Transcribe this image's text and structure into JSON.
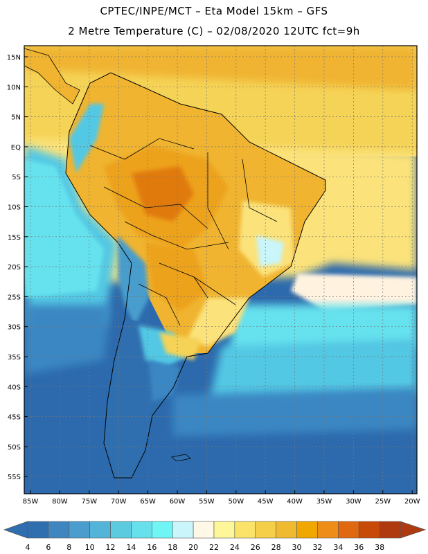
{
  "title_line1": "CPTEC/INPE/MCT –  Eta Model 15km – GFS",
  "title_line2": "2 Metre Temperature (C) – 02/08/2020 12UTC fct=9h",
  "lat_labels": [
    "15N",
    "10N",
    "5N",
    "EQ",
    "5S",
    "10S",
    "15S",
    "20S",
    "25S",
    "30S",
    "35S",
    "40S",
    "45S",
    "50S",
    "55S"
  ],
  "lon_labels": [
    "85W",
    "80W",
    "75W",
    "70W",
    "65W",
    "60W",
    "55W",
    "50W",
    "45W",
    "40W",
    "35W",
    "30W",
    "25W",
    "20W"
  ],
  "colorbar": {
    "labels": [
      "4",
      "6",
      "8",
      "10",
      "12",
      "14",
      "16",
      "18",
      "20",
      "22",
      "24",
      "26",
      "28",
      "30",
      "32",
      "34",
      "36",
      "38"
    ],
    "colors": [
      "#2f6fb0",
      "#3f86c0",
      "#4a9dcc",
      "#52b4d8",
      "#5ccbe0",
      "#66e0ea",
      "#70f5f5",
      "#c9f5fb",
      "#fff8e6",
      "#fef79a",
      "#fbe36a",
      "#f5cf4a",
      "#f0ba30",
      "#f0a800",
      "#ee8e18",
      "#e06810",
      "#c84a08",
      "#b03a10"
    ]
  },
  "field_colors": {
    "ocean_deep": "#2c6aad",
    "ocean_mid": "#3b87c3",
    "ocean_cyan": "#52c8e4",
    "ocean_light_cyan": "#66e2ee",
    "pale": "#fff3e0",
    "yellow_light": "#fbe27a",
    "yellow": "#f5d356",
    "gold": "#f0b430",
    "orange": "#eda21a",
    "dark_orange": "#e07a10",
    "andes_cold": "#4a9dcc"
  }
}
